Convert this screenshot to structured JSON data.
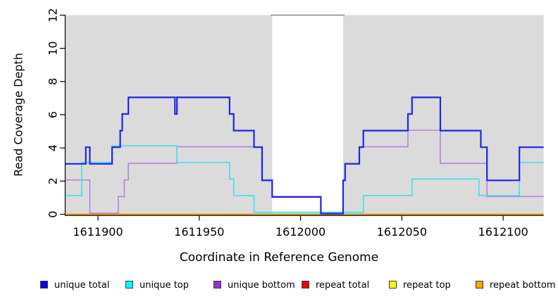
{
  "chart_data": {
    "type": "line",
    "subtype": "step-coverage",
    "title": "",
    "xlabel": "Coordinate in Reference Genome",
    "ylabel": "Read Coverage Depth",
    "xlim": [
      1611884,
      1612120
    ],
    "ylim": [
      0,
      12
    ],
    "x_ticks": [
      1611900,
      1611950,
      1612000,
      1612050,
      1612100
    ],
    "y_ticks": [
      0,
      2,
      4,
      6,
      8,
      10,
      12
    ],
    "grid": false,
    "legend_position": "bottom",
    "background_regions": [
      {
        "name": "covered-region-left",
        "x1": 1611884,
        "x2": 1611986,
        "color": "#DBDBDB"
      },
      {
        "name": "covered-region-right",
        "x1": 1612021,
        "x2": 1612120,
        "color": "#DBDBDB"
      }
    ],
    "gap_region": {
      "x1": 1611986,
      "x2": 1612021,
      "top_border_color": "#888888"
    },
    "zero_line_green_segment": {
      "x1": 1611977,
      "x2": 1612031,
      "y": 0,
      "color": "#9BD49B"
    },
    "series": [
      {
        "name": "unique total",
        "color": "#2323E6",
        "steps": [
          [
            1611884,
            3
          ],
          [
            1611894,
            4
          ],
          [
            1611896,
            3
          ],
          [
            1611907,
            4
          ],
          [
            1611911,
            5
          ],
          [
            1611912,
            6
          ],
          [
            1611915,
            7
          ],
          [
            1611938,
            6
          ],
          [
            1611939,
            7
          ],
          [
            1611965,
            6
          ],
          [
            1611967,
            5
          ],
          [
            1611977,
            4
          ],
          [
            1611981,
            2
          ],
          [
            1611986,
            1
          ],
          [
            1612010,
            0
          ],
          [
            1612021,
            2
          ],
          [
            1612022,
            3
          ],
          [
            1612029,
            4
          ],
          [
            1612031,
            5
          ],
          [
            1612053,
            6
          ],
          [
            1612055,
            7
          ],
          [
            1612069,
            5
          ],
          [
            1612089,
            4
          ],
          [
            1612092,
            2
          ],
          [
            1612108,
            4
          ]
        ]
      },
      {
        "name": "unique top",
        "color": "#45DEE8",
        "steps": [
          [
            1611884,
            1
          ],
          [
            1611892,
            3
          ],
          [
            1611907,
            4
          ],
          [
            1611939,
            3
          ],
          [
            1611965,
            2
          ],
          [
            1611967,
            1
          ],
          [
            1611977,
            0
          ],
          [
            1612031,
            1
          ],
          [
            1612055,
            2
          ],
          [
            1612088,
            1
          ],
          [
            1612108,
            3
          ]
        ]
      },
      {
        "name": "unique bottom",
        "color": "#B286DC",
        "steps": [
          [
            1611884,
            2
          ],
          [
            1611896,
            0
          ],
          [
            1611910,
            1
          ],
          [
            1611913,
            2
          ],
          [
            1611915,
            3
          ],
          [
            1611939,
            4
          ],
          [
            1611981,
            2
          ],
          [
            1611986,
            1
          ],
          [
            1612010,
            0
          ],
          [
            1612021,
            2
          ],
          [
            1612022,
            3
          ],
          [
            1612029,
            4
          ],
          [
            1612053,
            5
          ],
          [
            1612069,
            3
          ],
          [
            1612092,
            1
          ]
        ]
      },
      {
        "name": "repeat total",
        "color": "#E00000",
        "steps": [
          [
            1611884,
            0
          ]
        ]
      },
      {
        "name": "repeat top",
        "color": "#FFE800",
        "steps": [
          [
            1611884,
            0
          ]
        ]
      },
      {
        "name": "repeat bottom",
        "color": "#FF9E00",
        "steps": [
          [
            1611884,
            0
          ]
        ]
      }
    ],
    "legend": [
      {
        "label": "unique total",
        "color": "#0000EE"
      },
      {
        "label": "unique top",
        "color": "#00FFFF"
      },
      {
        "label": "unique bottom",
        "color": "#9932CC"
      },
      {
        "label": "repeat total",
        "color": "#EE0000"
      },
      {
        "label": "repeat top",
        "color": "#FFFF00"
      },
      {
        "label": "repeat bottom",
        "color": "#FFA500"
      }
    ]
  }
}
